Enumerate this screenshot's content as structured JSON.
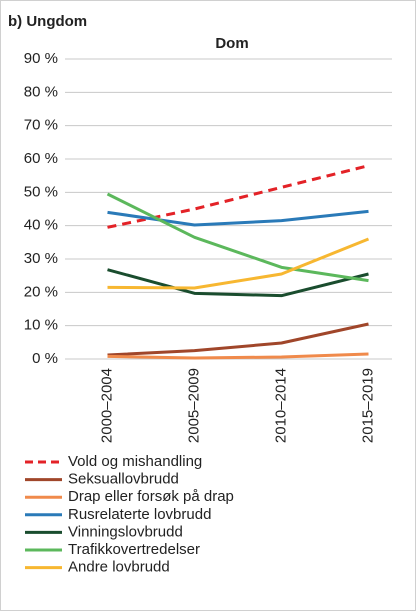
{
  "chart_data": {
    "type": "line",
    "panel_label": "b) Ungdom",
    "title": "Dom",
    "categories": [
      "2000–2004",
      "2005–2009",
      "2010–2014",
      "2015–2019"
    ],
    "ylim": [
      0,
      90
    ],
    "yticks": [
      {
        "value": 0,
        "label": "0 %"
      },
      {
        "value": 10,
        "label": "10 %"
      },
      {
        "value": 20,
        "label": "20 %"
      },
      {
        "value": 30,
        "label": "30 %"
      },
      {
        "value": 40,
        "label": "40 %"
      },
      {
        "value": 50,
        "label": "50 %"
      },
      {
        "value": 60,
        "label": "60 %"
      },
      {
        "value": 70,
        "label": "70 %"
      },
      {
        "value": 80,
        "label": "80 %"
      },
      {
        "value": 90,
        "label": "90 %"
      }
    ],
    "grid": true,
    "legend": "bottom",
    "series": [
      {
        "name": "Vold og mishandling",
        "color": "#e32227",
        "dashed": true,
        "values": [
          39.5,
          45,
          51.5,
          58
        ]
      },
      {
        "name": "Seksuallovbrudd",
        "color": "#a0462a",
        "values": [
          1.2,
          2.5,
          4.8,
          10.5
        ]
      },
      {
        "name": "Drap eller forsøk på drap",
        "color": "#f08a4b",
        "values": [
          0.8,
          0.3,
          0.6,
          1.5
        ]
      },
      {
        "name": "Rusrelaterte lovbrudd",
        "color": "#2a7ab8",
        "values": [
          44,
          40.2,
          41.5,
          44.3
        ]
      },
      {
        "name": "Vinningslovbrudd",
        "color": "#1a4d2e",
        "values": [
          26.8,
          19.7,
          19,
          25.5
        ]
      },
      {
        "name": "Trafikkovertredelser",
        "color": "#5cb85c",
        "values": [
          49.5,
          36.5,
          27.5,
          23.5
        ]
      },
      {
        "name": "Andre lovbrudd",
        "color": "#f7b731",
        "values": [
          21.5,
          21.3,
          25.5,
          36
        ]
      }
    ]
  }
}
